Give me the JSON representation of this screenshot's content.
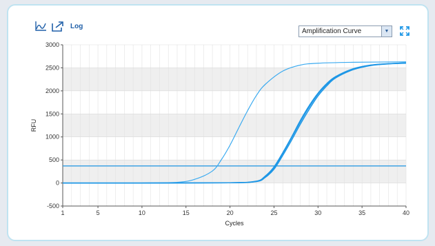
{
  "toolbar": {
    "chart_icon": "line-chart-icon",
    "export_icon": "export-icon",
    "log_label": "Log"
  },
  "view_select": {
    "selected": "Amplification Curve",
    "arrow_icon": "dropdown-arrow-icon"
  },
  "expand_icon": "expand-icon",
  "colors": {
    "curve": "#1e97e6",
    "curve_light": "#3aaaf0",
    "threshold": "#2e9be3",
    "band": "#efefef"
  },
  "chart_data": {
    "type": "line",
    "xlabel": "Cycles",
    "ylabel": "RFU",
    "xlim": [
      1,
      40
    ],
    "ylim": [
      -500,
      3000
    ],
    "xticks": [
      1,
      5,
      10,
      15,
      20,
      25,
      30,
      35,
      40
    ],
    "yticks": [
      -500,
      0,
      500,
      1000,
      1500,
      2000,
      2500,
      3000
    ],
    "threshold": 370,
    "grid": true,
    "series": [
      {
        "x": [
          1,
          5,
          10,
          14,
          16,
          18,
          19,
          20,
          21,
          22,
          23,
          24,
          26,
          28,
          30,
          34,
          40
        ],
        "values": [
          0,
          0,
          0,
          15,
          80,
          260,
          500,
          820,
          1200,
          1570,
          1900,
          2140,
          2430,
          2560,
          2600,
          2620,
          2630
        ]
      },
      {
        "x": [
          1,
          10,
          20,
          23,
          24,
          25,
          26,
          27,
          28,
          29,
          30,
          31,
          32,
          34,
          36,
          38,
          40
        ],
        "values": [
          0,
          0,
          5,
          40,
          150,
          350,
          660,
          1000,
          1360,
          1680,
          1950,
          2160,
          2310,
          2480,
          2560,
          2590,
          2610
        ]
      },
      {
        "x": [
          1,
          10,
          20,
          23,
          24,
          25,
          26,
          27,
          28,
          29,
          30,
          31,
          32,
          34,
          36,
          38,
          40
        ],
        "values": [
          0,
          0,
          5,
          30,
          120,
          300,
          600,
          930,
          1280,
          1600,
          1890,
          2110,
          2280,
          2460,
          2550,
          2585,
          2600
        ]
      },
      {
        "x": [
          1,
          10,
          20,
          23,
          24,
          25,
          26,
          27,
          28,
          29,
          30,
          31,
          32,
          34,
          36,
          38,
          40
        ],
        "values": [
          0,
          0,
          5,
          35,
          135,
          330,
          640,
          980,
          1330,
          1650,
          1930,
          2140,
          2300,
          2470,
          2555,
          2588,
          2605
        ]
      }
    ]
  }
}
